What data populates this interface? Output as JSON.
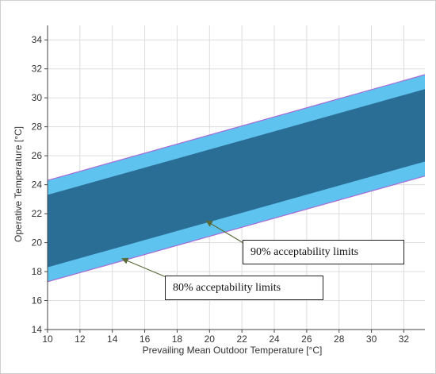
{
  "chart_data": {
    "type": "area",
    "title": "",
    "xlabel": "Prevailing Mean Outdoor Temperature [°C]",
    "ylabel": "Operative Temperature [°C]",
    "xlim": [
      10,
      33.3
    ],
    "ylim": [
      14,
      35
    ],
    "xticks": [
      10,
      12,
      14,
      16,
      18,
      20,
      22,
      24,
      26,
      28,
      30,
      32
    ],
    "yticks": [
      14,
      16,
      18,
      20,
      22,
      24,
      26,
      28,
      30,
      32,
      34
    ],
    "grid": true,
    "series": [
      {
        "name": "80% acceptability limits",
        "color": "#5fc3f0",
        "x": [
          10,
          33.3
        ],
        "upper": [
          24.3,
          31.6
        ],
        "lower": [
          17.3,
          24.6
        ]
      },
      {
        "name": "90% acceptability limits",
        "color": "#2a6e96",
        "x": [
          10,
          33.3
        ],
        "upper": [
          23.3,
          30.6
        ],
        "lower": [
          18.3,
          25.6
        ]
      }
    ],
    "annotations": [
      {
        "text": "90% acceptability limits",
        "arrow_to": [
          19.8,
          21.5
        ]
      },
      {
        "text": "80% acceptability limits",
        "arrow_to": [
          14.6,
          18.9
        ]
      }
    ]
  },
  "colors": {
    "band80": "#5fc3f0",
    "band90": "#2a6e96",
    "edge": "#a66ad8",
    "arrow": "#5a6b3a",
    "grid": "#dddddd"
  }
}
